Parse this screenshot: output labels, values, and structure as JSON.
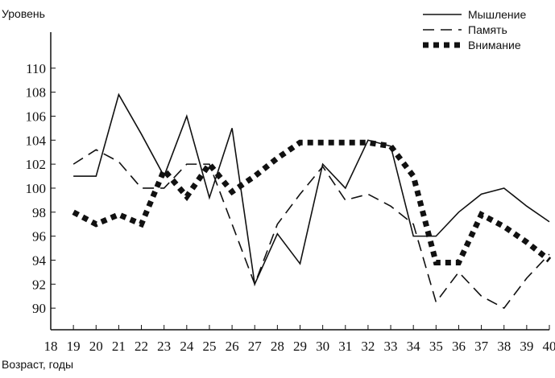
{
  "chart_data": {
    "type": "line",
    "y_label": "Уровень",
    "x_label": "Возраст, годы",
    "x": [
      19,
      20,
      21,
      22,
      23,
      24,
      25,
      26,
      27,
      28,
      29,
      30,
      31,
      32,
      33,
      34,
      35,
      36,
      37,
      38,
      39,
      40
    ],
    "series": [
      {
        "name": "Мышление",
        "color": "#111111",
        "style": "solid",
        "values": [
          101,
          101,
          107.8,
          104.5,
          101,
          106,
          99.2,
          105,
          92,
          96.2,
          93.7,
          102,
          100,
          104,
          103.5,
          96,
          96,
          98,
          99.5,
          100,
          98.5,
          97.2
        ]
      },
      {
        "name": "Память",
        "color": "#111111",
        "style": "dashed",
        "values": [
          102,
          103.2,
          102.2,
          100,
          100,
          102,
          102,
          97,
          92,
          97,
          99.5,
          101.8,
          99,
          99.5,
          98.5,
          97,
          90.5,
          93,
          91,
          90,
          92.5,
          94.5
        ]
      },
      {
        "name": "Внимание",
        "color": "#111111",
        "style": "dotted",
        "values": [
          98,
          97,
          97.8,
          97,
          101.5,
          99.3,
          102,
          99.7,
          101,
          102.5,
          103.8,
          103.8,
          103.8,
          103.8,
          103.5,
          101,
          93.8,
          93.8,
          97.8,
          96.8,
          95.5,
          94
        ]
      }
    ],
    "xlim": [
      18,
      40
    ],
    "xticks": [
      18,
      19,
      20,
      21,
      22,
      23,
      24,
      25,
      26,
      27,
      28,
      29,
      30,
      31,
      32,
      33,
      34,
      35,
      36,
      37,
      38,
      39,
      40
    ],
    "ylim": [
      88.2,
      113
    ],
    "yticks": [
      90,
      92,
      94,
      96,
      98,
      100,
      102,
      104,
      106,
      108,
      110
    ],
    "legend": "top-right"
  }
}
